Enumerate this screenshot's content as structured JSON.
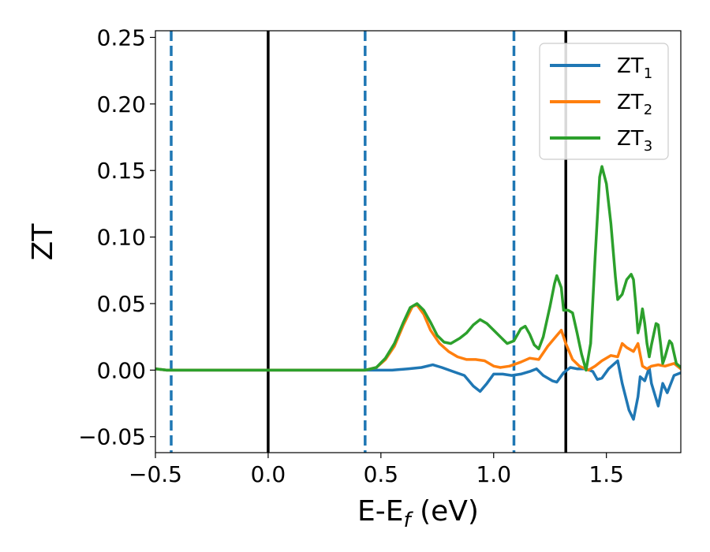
{
  "chart_data": {
    "type": "line",
    "xlabel": "E-E",
    "xlabel_sub": "f",
    "xlabel_unit": " (eV)",
    "ylabel": "ZT",
    "xlim": [
      -0.5,
      1.83
    ],
    "ylim": [
      -0.062,
      0.255
    ],
    "xticks": [
      -0.5,
      0.0,
      0.5,
      1.0,
      1.5
    ],
    "xtick_labels": [
      "−0.5",
      "0.0",
      "0.5",
      "1.0",
      "1.5"
    ],
    "yticks": [
      -0.05,
      0.0,
      0.05,
      0.1,
      0.15,
      0.2,
      0.25
    ],
    "ytick_labels": [
      "−0.05",
      "0.00",
      "0.05",
      "0.10",
      "0.15",
      "0.20",
      "0.25"
    ],
    "grid": false,
    "legend_position": "top-right",
    "vlines": [
      {
        "x": -0.43,
        "style": "dashed",
        "color": "#1f77b4"
      },
      {
        "x": 0.0,
        "style": "solid",
        "color": "#000000"
      },
      {
        "x": 0.43,
        "style": "dashed",
        "color": "#1f77b4"
      },
      {
        "x": 1.09,
        "style": "dashed",
        "color": "#1f77b4"
      },
      {
        "x": 1.32,
        "style": "solid",
        "color": "#000000"
      }
    ],
    "series": [
      {
        "name": "ZT",
        "name_sub": "1",
        "color": "#1f77b4",
        "points": [
          [
            -0.5,
            0.001
          ],
          [
            -0.45,
            0.0
          ],
          [
            -0.3,
            0.0
          ],
          [
            0.0,
            0.0
          ],
          [
            0.3,
            0.0
          ],
          [
            0.45,
            0.0
          ],
          [
            0.55,
            0.0
          ],
          [
            0.62,
            0.001
          ],
          [
            0.68,
            0.002
          ],
          [
            0.73,
            0.004
          ],
          [
            0.77,
            0.002
          ],
          [
            0.82,
            -0.001
          ],
          [
            0.87,
            -0.004
          ],
          [
            0.91,
            -0.012
          ],
          [
            0.94,
            -0.016
          ],
          [
            0.97,
            -0.01
          ],
          [
            1.0,
            -0.003
          ],
          [
            1.04,
            -0.003
          ],
          [
            1.08,
            -0.004
          ],
          [
            1.12,
            -0.003
          ],
          [
            1.16,
            -0.001
          ],
          [
            1.19,
            0.001
          ],
          [
            1.22,
            -0.004
          ],
          [
            1.26,
            -0.008
          ],
          [
            1.28,
            -0.009
          ],
          [
            1.31,
            -0.002
          ],
          [
            1.34,
            0.002
          ],
          [
            1.37,
            0.001
          ],
          [
            1.41,
            0.001
          ],
          [
            1.44,
            -0.001
          ],
          [
            1.46,
            -0.007
          ],
          [
            1.48,
            -0.006
          ],
          [
            1.51,
            0.001
          ],
          [
            1.55,
            0.007
          ],
          [
            1.57,
            -0.01
          ],
          [
            1.6,
            -0.03
          ],
          [
            1.62,
            -0.037
          ],
          [
            1.64,
            -0.02
          ],
          [
            1.65,
            -0.005
          ],
          [
            1.67,
            -0.008
          ],
          [
            1.69,
            0.002
          ],
          [
            1.7,
            -0.01
          ],
          [
            1.73,
            -0.027
          ],
          [
            1.75,
            -0.01
          ],
          [
            1.77,
            -0.017
          ],
          [
            1.8,
            -0.004
          ],
          [
            1.83,
            -0.002
          ]
        ]
      },
      {
        "name": "ZT",
        "name_sub": "2",
        "color": "#ff7f0e",
        "points": [
          [
            -0.5,
            0.001
          ],
          [
            -0.45,
            0.0
          ],
          [
            -0.3,
            0.0
          ],
          [
            0.0,
            0.0
          ],
          [
            0.3,
            0.0
          ],
          [
            0.43,
            0.0
          ],
          [
            0.48,
            0.002
          ],
          [
            0.52,
            0.008
          ],
          [
            0.56,
            0.018
          ],
          [
            0.6,
            0.034
          ],
          [
            0.64,
            0.048
          ],
          [
            0.66,
            0.049
          ],
          [
            0.69,
            0.042
          ],
          [
            0.72,
            0.03
          ],
          [
            0.76,
            0.02
          ],
          [
            0.8,
            0.014
          ],
          [
            0.84,
            0.01
          ],
          [
            0.88,
            0.008
          ],
          [
            0.92,
            0.008
          ],
          [
            0.96,
            0.007
          ],
          [
            1.0,
            0.003
          ],
          [
            1.03,
            0.002
          ],
          [
            1.07,
            0.003
          ],
          [
            1.12,
            0.006
          ],
          [
            1.16,
            0.009
          ],
          [
            1.2,
            0.008
          ],
          [
            1.24,
            0.018
          ],
          [
            1.27,
            0.024
          ],
          [
            1.3,
            0.03
          ],
          [
            1.32,
            0.02
          ],
          [
            1.35,
            0.008
          ],
          [
            1.38,
            0.003
          ],
          [
            1.42,
            0.0
          ],
          [
            1.45,
            0.003
          ],
          [
            1.48,
            0.007
          ],
          [
            1.52,
            0.011
          ],
          [
            1.55,
            0.01
          ],
          [
            1.57,
            0.02
          ],
          [
            1.59,
            0.017
          ],
          [
            1.62,
            0.014
          ],
          [
            1.64,
            0.02
          ],
          [
            1.66,
            0.003
          ],
          [
            1.68,
            0.001
          ],
          [
            1.7,
            0.003
          ],
          [
            1.73,
            0.004
          ],
          [
            1.76,
            0.003
          ],
          [
            1.8,
            0.005
          ],
          [
            1.83,
            0.001
          ]
        ]
      },
      {
        "name": "ZT",
        "name_sub": "3",
        "color": "#2ca02c",
        "points": [
          [
            -0.5,
            0.001
          ],
          [
            -0.45,
            0.0
          ],
          [
            -0.3,
            0.0
          ],
          [
            0.0,
            0.0
          ],
          [
            0.3,
            0.0
          ],
          [
            0.43,
            0.0
          ],
          [
            0.48,
            0.002
          ],
          [
            0.52,
            0.009
          ],
          [
            0.56,
            0.02
          ],
          [
            0.6,
            0.036
          ],
          [
            0.63,
            0.047
          ],
          [
            0.66,
            0.05
          ],
          [
            0.69,
            0.045
          ],
          [
            0.72,
            0.036
          ],
          [
            0.75,
            0.026
          ],
          [
            0.78,
            0.021
          ],
          [
            0.81,
            0.02
          ],
          [
            0.85,
            0.024
          ],
          [
            0.88,
            0.028
          ],
          [
            0.91,
            0.034
          ],
          [
            0.94,
            0.038
          ],
          [
            0.97,
            0.035
          ],
          [
            1.0,
            0.03
          ],
          [
            1.03,
            0.025
          ],
          [
            1.06,
            0.02
          ],
          [
            1.09,
            0.022
          ],
          [
            1.12,
            0.031
          ],
          [
            1.14,
            0.033
          ],
          [
            1.16,
            0.027
          ],
          [
            1.18,
            0.019
          ],
          [
            1.2,
            0.016
          ],
          [
            1.22,
            0.025
          ],
          [
            1.25,
            0.048
          ],
          [
            1.27,
            0.065
          ],
          [
            1.28,
            0.071
          ],
          [
            1.3,
            0.062
          ],
          [
            1.31,
            0.045
          ],
          [
            1.33,
            0.045
          ],
          [
            1.35,
            0.043
          ],
          [
            1.37,
            0.028
          ],
          [
            1.39,
            0.012
          ],
          [
            1.41,
            0.0
          ],
          [
            1.43,
            0.02
          ],
          [
            1.45,
            0.085
          ],
          [
            1.47,
            0.145
          ],
          [
            1.48,
            0.153
          ],
          [
            1.5,
            0.14
          ],
          [
            1.52,
            0.11
          ],
          [
            1.54,
            0.07
          ],
          [
            1.55,
            0.053
          ],
          [
            1.57,
            0.057
          ],
          [
            1.59,
            0.068
          ],
          [
            1.61,
            0.072
          ],
          [
            1.62,
            0.068
          ],
          [
            1.63,
            0.05
          ],
          [
            1.64,
            0.028
          ],
          [
            1.65,
            0.035
          ],
          [
            1.66,
            0.046
          ],
          [
            1.67,
            0.035
          ],
          [
            1.68,
            0.02
          ],
          [
            1.69,
            0.01
          ],
          [
            1.7,
            0.019
          ],
          [
            1.72,
            0.035
          ],
          [
            1.73,
            0.034
          ],
          [
            1.74,
            0.02
          ],
          [
            1.75,
            0.005
          ],
          [
            1.76,
            0.01
          ],
          [
            1.78,
            0.022
          ],
          [
            1.79,
            0.02
          ],
          [
            1.81,
            0.005
          ],
          [
            1.83,
            0.002
          ]
        ]
      }
    ]
  }
}
